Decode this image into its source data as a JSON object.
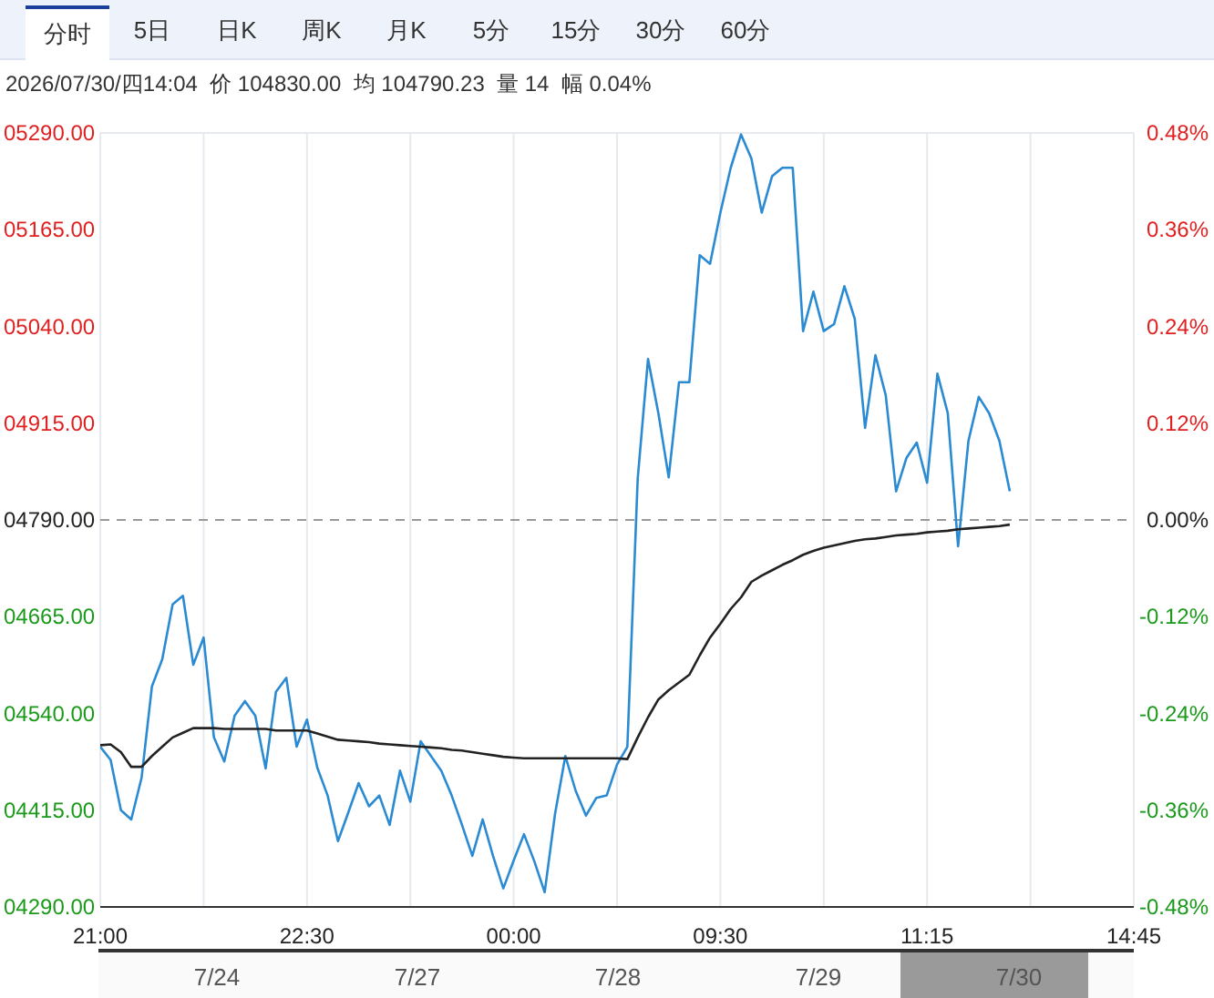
{
  "chart_data": {
    "type": "line",
    "subtitle": "2026/07/30/四14:04  价 104830.00  均 104790.23  量 14  幅 0.04%",
    "annotations": [
      "分时",
      "5日",
      "日K",
      "周K",
      "月K",
      "5分",
      "15分",
      "30分",
      "60分",
      "7/24",
      "7/27",
      "7/28",
      "7/29",
      "7/30"
    ],
    "categories": [
      "21:00",
      null,
      null,
      null,
      null,
      null,
      null,
      null,
      null,
      null,
      null,
      null,
      null,
      null,
      null,
      null,
      null,
      null,
      null,
      null,
      "22:30",
      null,
      null,
      null,
      null,
      null,
      null,
      null,
      null,
      null,
      null,
      null,
      null,
      null,
      null,
      null,
      null,
      null,
      null,
      null,
      "00:00",
      null,
      null,
      null,
      null,
      null,
      null,
      null,
      null,
      null,
      null,
      null,
      null,
      null,
      null,
      null,
      null,
      null,
      null,
      null,
      "09:30",
      null,
      null,
      null,
      null,
      null,
      null,
      null,
      null,
      null,
      null,
      null,
      null,
      null,
      null,
      null,
      null,
      null,
      null,
      null,
      "11:15",
      null,
      null,
      null,
      null,
      null,
      null,
      null,
      null,
      null,
      null,
      null,
      null,
      null,
      null,
      null,
      null,
      null,
      null,
      null,
      "14:45"
    ],
    "ylim": [
      4290,
      5290
    ],
    "yticks": [
      {
        "value": 4290,
        "label": "04290.00"
      },
      {
        "value": 4415,
        "label": "04415.00"
      },
      {
        "value": 4540,
        "label": "04540.00"
      },
      {
        "value": 4665,
        "label": "04665.00"
      },
      {
        "value": 4790,
        "label": "04790.00"
      },
      {
        "value": 4915,
        "label": "04915.00"
      },
      {
        "value": 5040,
        "label": "05040.00"
      },
      {
        "value": 5165,
        "label": "05165.00"
      },
      {
        "value": 5290,
        "label": "05290.00"
      }
    ],
    "y2lim": [
      -0.48,
      0.48
    ],
    "y2ticks": [
      {
        "value": -0.48,
        "label": "-0.48%"
      },
      {
        "value": -0.36,
        "label": "-0.36%"
      },
      {
        "value": -0.24,
        "label": "-0.24%"
      },
      {
        "value": -0.12,
        "label": "-0.12%"
      },
      {
        "value": 0,
        "label": "0.00%"
      },
      {
        "value": 0.12,
        "label": "0.12%"
      },
      {
        "value": 0.24,
        "label": "0.24%"
      },
      {
        "value": 0.36,
        "label": "0.36%"
      },
      {
        "value": 0.48,
        "label": "0.48%"
      }
    ],
    "grid": true,
    "marker": "none",
    "ref_lines": [
      {
        "axis": "y",
        "value": 4790,
        "color": "#999999",
        "line_style": "dashed"
      }
    ],
    "series": [
      {
        "color": "#2a8ad2",
        "values": [
          4497,
          4480,
          4415,
          4403,
          4457,
          4575,
          4610,
          4681,
          4692,
          4603,
          4638,
          4509,
          4478,
          4537,
          4556,
          4537,
          4469,
          4568,
          4586,
          4497,
          4532,
          4470,
          4434,
          4375,
          4412,
          4450,
          4420,
          4434,
          4396,
          4466,
          4426,
          4504,
          4485,
          4466,
          4434,
          4396,
          4356,
          4403,
          4356,
          4314,
          4350,
          4384,
          4349,
          4309,
          4410,
          4485,
          4440,
          4408,
          4431,
          4434,
          4474,
          4497,
          4843,
          4998,
          4928,
          4845,
          4968,
          4968,
          5132,
          5121,
          5187,
          5245,
          5288,
          5257,
          5187,
          5234,
          5245,
          5245,
          5034,
          5085,
          5034,
          5043,
          5092,
          5050,
          4909,
          5003,
          4951,
          4827,
          4870,
          4890,
          4838,
          4979,
          4928,
          4756,
          4892,
          4949,
          4928,
          4892,
          4827,
          null,
          null,
          null,
          null,
          null,
          null,
          null,
          null,
          null,
          null,
          null,
          null
        ]
      },
      {
        "color": "#222222",
        "values": [
          4499,
          4500,
          4490,
          4471,
          4471,
          4485,
          4497,
          4509,
          4515,
          4521,
          4521,
          4521,
          4520,
          4520,
          4520,
          4520,
          4520,
          4518,
          4518,
          4518,
          4518,
          4514,
          4510,
          4506,
          4505,
          4504,
          4503,
          4501,
          4500,
          4499,
          4498,
          4497,
          4496,
          4495,
          4493,
          4492,
          4490,
          4488,
          4486,
          4484,
          4483,
          4482,
          4482,
          4482,
          4482,
          4482,
          4482,
          4482,
          4482,
          4482,
          4482,
          4481,
          4509,
          4535,
          4558,
          4570,
          4580,
          4590,
          4615,
          4638,
          4656,
          4675,
          4690,
          4710,
          4718,
          4725,
          4732,
          4738,
          4745,
          4750,
          4754,
          4757,
          4760,
          4763,
          4765,
          4766,
          4768,
          4770,
          4771,
          4772,
          4774,
          4775,
          4776,
          4778,
          4779,
          4780,
          4781,
          4782,
          4784,
          null,
          null,
          null,
          null,
          null,
          null,
          null,
          null,
          null,
          null,
          null,
          null
        ]
      }
    ]
  }
}
